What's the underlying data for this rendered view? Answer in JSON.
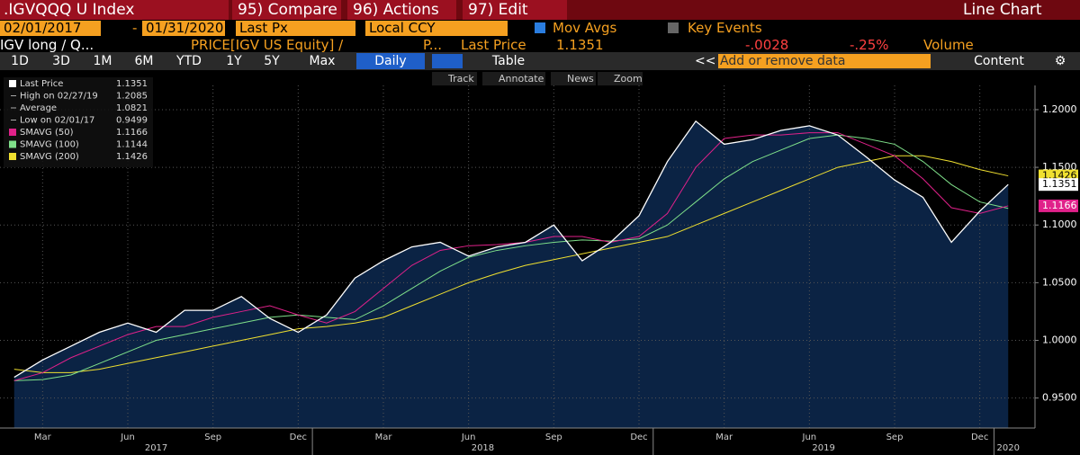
{
  "header": {
    "security": ".IGVQQQ U Index",
    "menus": [
      "95) Compare",
      "96) Actions",
      "97) Edit"
    ],
    "view": "Line Chart"
  },
  "controls": {
    "start_date": "02/01/2017",
    "separator": "-",
    "end_date": "01/31/2020",
    "field": "Last Px",
    "currency": "Local CCY",
    "mov_avgs": "Mov Avgs",
    "key_events": "Key Events"
  },
  "info": {
    "study": "IGV long / Q...",
    "expression": "PRICE[IGV US Equity] /",
    "more": "P...",
    "change": "-.0028",
    "change_pct": "-.25%",
    "volume": "Volume"
  },
  "toolbar": {
    "periods": [
      "1D",
      "3D",
      "1M",
      "6M",
      "YTD",
      "1Y",
      "5Y",
      "Max"
    ],
    "frequency": "Daily",
    "table": "Table",
    "back": "<<",
    "search_placeholder": "Add or remove data",
    "content": "Content"
  },
  "chart_tools": [
    "Track",
    "Annotate",
    "News",
    "Zoom"
  ],
  "chart_data": {
    "type": "line",
    "x": [
      "2017-02",
      "2017-03",
      "2017-04",
      "2017-05",
      "2017-06",
      "2017-07",
      "2017-08",
      "2017-09",
      "2017-10",
      "2017-11",
      "2017-12",
      "2018-01",
      "2018-02",
      "2018-03",
      "2018-04",
      "2018-05",
      "2018-06",
      "2018-07",
      "2018-08",
      "2018-09",
      "2018-10",
      "2018-11",
      "2018-12",
      "2019-01",
      "2019-02",
      "2019-03",
      "2019-04",
      "2019-05",
      "2019-06",
      "2019-07",
      "2019-08",
      "2019-09",
      "2019-10",
      "2019-11",
      "2019-12",
      "2020-01"
    ],
    "series": [
      {
        "name": "Last Price",
        "color": "#ffffff",
        "values": [
          0.968,
          0.983,
          0.995,
          1.007,
          1.015,
          1.007,
          1.026,
          1.026,
          1.038,
          1.019,
          1.007,
          1.022,
          1.054,
          1.069,
          1.081,
          1.085,
          1.073,
          1.081,
          1.085,
          1.1,
          1.069,
          1.085,
          1.108,
          1.155,
          1.19,
          1.17,
          1.174,
          1.182,
          1.186,
          1.178,
          1.159,
          1.139,
          1.124,
          1.085,
          1.112,
          1.1351
        ]
      },
      {
        "name": "SMAVG (50)",
        "color": "#e0218a",
        "values": [
          0.965,
          0.972,
          0.985,
          0.995,
          1.005,
          1.012,
          1.012,
          1.02,
          1.025,
          1.03,
          1.022,
          1.015,
          1.025,
          1.045,
          1.065,
          1.078,
          1.082,
          1.083,
          1.085,
          1.09,
          1.09,
          1.085,
          1.09,
          1.11,
          1.15,
          1.175,
          1.178,
          1.178,
          1.18,
          1.18,
          1.17,
          1.16,
          1.14,
          1.115,
          1.11,
          1.1166
        ]
      },
      {
        "name": "SMAVG (100)",
        "color": "#7fe08a",
        "values": [
          0.965,
          0.966,
          0.97,
          0.98,
          0.99,
          1.0,
          1.005,
          1.01,
          1.015,
          1.02,
          1.022,
          1.02,
          1.018,
          1.03,
          1.045,
          1.06,
          1.072,
          1.078,
          1.082,
          1.085,
          1.087,
          1.086,
          1.088,
          1.1,
          1.12,
          1.14,
          1.155,
          1.165,
          1.175,
          1.178,
          1.175,
          1.17,
          1.155,
          1.135,
          1.12,
          1.1144
        ]
      },
      {
        "name": "SMAVG (200)",
        "color": "#f0e030",
        "values": [
          0.975,
          0.972,
          0.972,
          0.975,
          0.98,
          0.985,
          0.99,
          0.995,
          1.0,
          1.005,
          1.01,
          1.012,
          1.015,
          1.02,
          1.03,
          1.04,
          1.05,
          1.058,
          1.065,
          1.07,
          1.075,
          1.08,
          1.085,
          1.09,
          1.1,
          1.11,
          1.12,
          1.13,
          1.14,
          1.15,
          1.155,
          1.16,
          1.16,
          1.155,
          1.148,
          1.1426
        ]
      }
    ],
    "stats": [
      {
        "label": "High on 02/27/19",
        "value": 1.2085
      },
      {
        "label": "Average",
        "value": 1.0821
      },
      {
        "label": "Low on 02/01/17",
        "value": 0.9499
      }
    ],
    "area_color": "#0b2344",
    "ylim": [
      0.924,
      1.221
    ],
    "yticks": [
      {
        "value": 0.95,
        "label": "0.9500"
      },
      {
        "value": 1.0,
        "label": "1.0000"
      },
      {
        "value": 1.05,
        "label": "1.0500"
      },
      {
        "value": 1.1,
        "label": "1.1000"
      },
      {
        "value": 1.15,
        "label": "1.1500"
      },
      {
        "value": 1.2,
        "label": "1.2000"
      }
    ],
    "xticks": [
      {
        "value": "2017-03",
        "label": "Mar"
      },
      {
        "value": "2017-06",
        "label": "Jun"
      },
      {
        "value": "2017-09",
        "label": "Sep"
      },
      {
        "value": "2017-12",
        "label": "Dec"
      },
      {
        "value": "2018-03",
        "label": "Mar"
      },
      {
        "value": "2018-06",
        "label": "Jun"
      },
      {
        "value": "2018-09",
        "label": "Sep"
      },
      {
        "value": "2018-12",
        "label": "Dec"
      },
      {
        "value": "2019-03",
        "label": "Mar"
      },
      {
        "value": "2019-06",
        "label": "Jun"
      },
      {
        "value": "2019-09",
        "label": "Sep"
      },
      {
        "value": "2019-12",
        "label": "Dec"
      }
    ],
    "years": [
      "2017",
      "2018",
      "2019",
      "2020"
    ],
    "grid": true
  }
}
